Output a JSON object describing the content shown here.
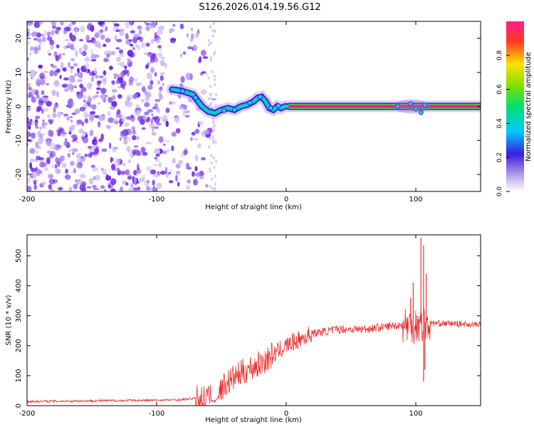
{
  "title": "S126.2026.014.19.56.G12",
  "colors": {
    "snr_line": "#e8302f",
    "noise_dark": "#6a1fe6",
    "noise_light": "#c9b4f3",
    "axis": "#000000"
  },
  "chart_data": [
    {
      "type": "heatmap",
      "name": "spectrogram",
      "xlabel": "Height of straight line (km)",
      "ylabel": "Frequency (Hz)",
      "xlim": [
        -200,
        150
      ],
      "ylim": [
        -25,
        25
      ],
      "xticks": [
        -200,
        -100,
        0,
        100
      ],
      "yticks": [
        -20,
        -10,
        0,
        10,
        20
      ],
      "colorbar": {
        "label": "Normalized spectral amplitude",
        "range": [
          0,
          1
        ],
        "ticks": [
          "0.0",
          "0.2",
          "0.4",
          "0.6",
          "0.8"
        ]
      },
      "ridge": {
        "x": [
          -88,
          -80,
          -72,
          -65,
          -60,
          -55,
          -50,
          -45,
          -40,
          -35,
          -30,
          -25,
          -22,
          -19,
          -16,
          -13,
          -10,
          -7,
          -4,
          -1,
          2,
          150
        ],
        "frequency_hz": [
          5,
          4.5,
          3.5,
          0,
          -1.5,
          -2,
          -1,
          -0.5,
          -1,
          0,
          0.5,
          1.5,
          2.5,
          2.8,
          1.5,
          -0.5,
          -1,
          0,
          -0.5,
          0,
          0,
          0
        ]
      },
      "noise_region": {
        "x_from": -200,
        "x_to": -55
      },
      "disturbance_region": {
        "x_from": 83,
        "x_to": 110
      }
    },
    {
      "type": "line",
      "name": "snr",
      "xlabel": "Height of straight line (km)",
      "ylabel": "SNR (10 * v/v)",
      "xlim": [
        -200,
        150
      ],
      "ylim": [
        0,
        570
      ],
      "xticks": [
        -200,
        -100,
        0,
        100
      ],
      "yticks": [
        0,
        100,
        200,
        300,
        400,
        500
      ],
      "trend": {
        "x": [
          -200,
          -100,
          -80,
          -70,
          -60,
          -55,
          -50,
          -40,
          -30,
          -20,
          -10,
          0,
          20,
          40,
          60,
          80,
          90,
          100,
          110,
          120,
          150
        ],
        "snr": [
          14,
          18,
          20,
          25,
          28,
          25,
          60,
          95,
          120,
          140,
          170,
          200,
          240,
          255,
          255,
          265,
          270,
          270,
          275,
          275,
          270
        ]
      },
      "spikes": [
        {
          "x": 96,
          "snr": 360
        },
        {
          "x": 98,
          "snr": 410
        },
        {
          "x": 101,
          "snr": 300
        },
        {
          "x": 104,
          "snr": 560
        },
        {
          "x": 106,
          "snr": 535
        },
        {
          "x": 107,
          "snr": 120
        },
        {
          "x": 108,
          "snr": 440
        },
        {
          "x": 106,
          "snr": 80
        }
      ]
    }
  ]
}
